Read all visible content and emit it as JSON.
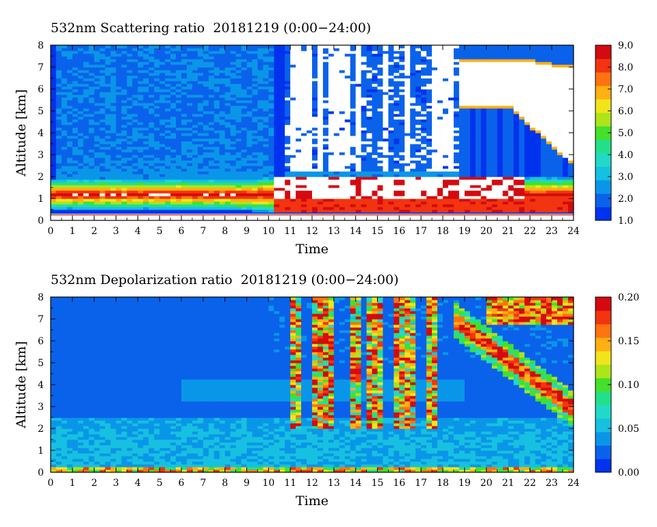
{
  "chart_data": [
    {
      "type": "heatmap",
      "title": "532nm Scattering ratio  20181219 (0:00−24:00)",
      "xlabel": "Time",
      "ylabel": "Altitude [km]",
      "xlim": [
        0,
        24
      ],
      "ylim": [
        0,
        8
      ],
      "x_ticks": [
        "0",
        "1",
        "2",
        "3",
        "4",
        "5",
        "6",
        "7",
        "8",
        "9",
        "10",
        "11",
        "12",
        "13",
        "14",
        "15",
        "16",
        "17",
        "18",
        "19",
        "20",
        "21",
        "22",
        "23",
        "24"
      ],
      "y_ticks": [
        "0",
        "1",
        "2",
        "3",
        "4",
        "5",
        "6",
        "7",
        "8"
      ],
      "colorbar": {
        "range": [
          1.0,
          9.0
        ],
        "ticks": [
          "1.0",
          "2.0",
          "3.0",
          "4.0",
          "5.0",
          "6.0",
          "7.0",
          "8.0",
          "9.0"
        ],
        "colors": [
          "#0033ee",
          "#0a62ea",
          "#0a96e8",
          "#17c0e0",
          "#22d9c8",
          "#22e08a",
          "#44e02a",
          "#aee41a",
          "#f2e41a",
          "#ffb012",
          "#ff7210",
          "#f23410",
          "#d40a10"
        ],
        "over_color": "#ffffff"
      },
      "features": [
        {
          "name": "aerosol boundary layer",
          "time": [
            0,
            24
          ],
          "altitude_km": [
            0.5,
            1.9
          ],
          "value": 8.5
        },
        {
          "name": "background aerosol",
          "time": [
            0,
            24
          ],
          "altitude_km": [
            1.9,
            8.0
          ],
          "value": 2.3
        },
        {
          "name": "cloud layer",
          "time": [
            10.5,
            21.5
          ],
          "altitude_km": [
            1.0,
            2.2
          ],
          "value": 9.0
        },
        {
          "name": "descending cirrus",
          "time": [
            18.5,
            24
          ],
          "altitude_km": [
            2.8,
            7.5
          ],
          "value": 9.0
        }
      ]
    },
    {
      "type": "heatmap",
      "title": "532nm Depolarization ratio  20181219 (0:00−24:00)",
      "xlabel": "Time",
      "ylabel": "Altitude [km]",
      "xlim": [
        0,
        24
      ],
      "ylim": [
        0,
        8
      ],
      "x_ticks": [
        "0",
        "1",
        "2",
        "3",
        "4",
        "5",
        "6",
        "7",
        "8",
        "9",
        "10",
        "11",
        "12",
        "13",
        "14",
        "15",
        "16",
        "17",
        "18",
        "19",
        "20",
        "21",
        "22",
        "23",
        "24"
      ],
      "y_ticks": [
        "0",
        "1",
        "2",
        "3",
        "4",
        "5",
        "6",
        "7",
        "8"
      ],
      "colorbar": {
        "range": [
          0.0,
          0.2
        ],
        "ticks": [
          "0.00",
          "0.05",
          "0.10",
          "0.15",
          "0.20"
        ],
        "colors": [
          "#0033ee",
          "#0a62ea",
          "#0a96e8",
          "#17c0e0",
          "#22d9c8",
          "#22e08a",
          "#44e02a",
          "#aee41a",
          "#f2e41a",
          "#ffb012",
          "#ff7210",
          "#f23410",
          "#d40a10"
        ]
      },
      "features": [
        {
          "name": "background",
          "time": [
            0,
            24
          ],
          "altitude_km": [
            0.0,
            8.0
          ],
          "value": 0.02
        },
        {
          "name": "boundary layer",
          "time": [
            0,
            24
          ],
          "altitude_km": [
            0.0,
            1.9
          ],
          "value": 0.045
        },
        {
          "name": "ice cloud columns",
          "time": [
            11,
            17.6
          ],
          "altitude_km": [
            2.0,
            8.0
          ],
          "value": 0.18
        },
        {
          "name": "descending cirrus",
          "time": [
            18.5,
            24
          ],
          "altitude_km": [
            2.8,
            7.8
          ],
          "value": 0.19
        }
      ]
    }
  ]
}
